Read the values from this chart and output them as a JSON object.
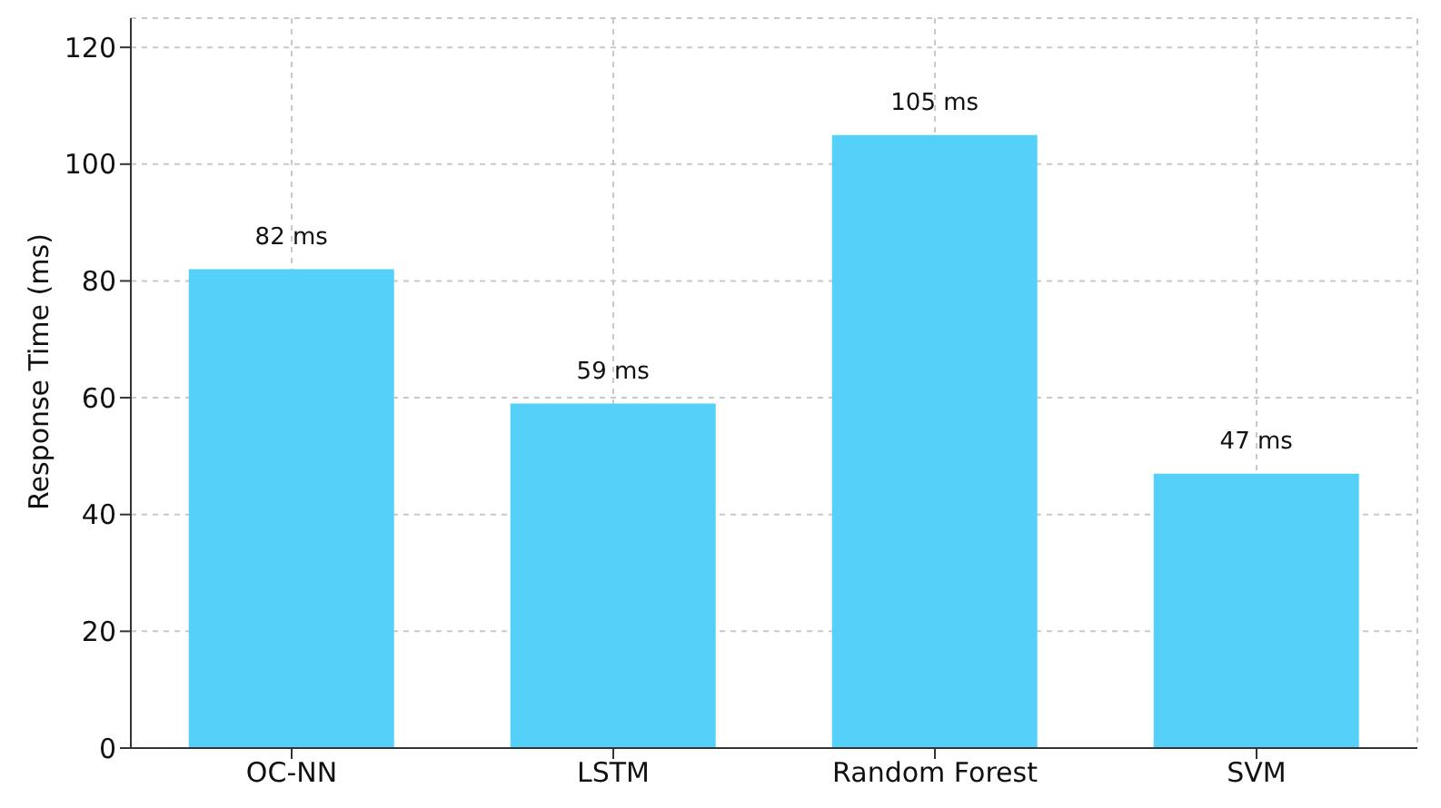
{
  "chart_data": {
    "type": "bar",
    "ylabel": "Response Time (ms)",
    "categories": [
      "OC-NN",
      "LSTM",
      "Random Forest",
      "SVM"
    ],
    "values": [
      82,
      59,
      105,
      47
    ],
    "value_labels": [
      "82 ms",
      "59 ms",
      "105 ms",
      "47 ms"
    ],
    "color": "#55d0f8",
    "ylim": [
      0,
      125
    ],
    "yticks": [
      0,
      20,
      40,
      60,
      80,
      100,
      120
    ],
    "grid": true
  }
}
